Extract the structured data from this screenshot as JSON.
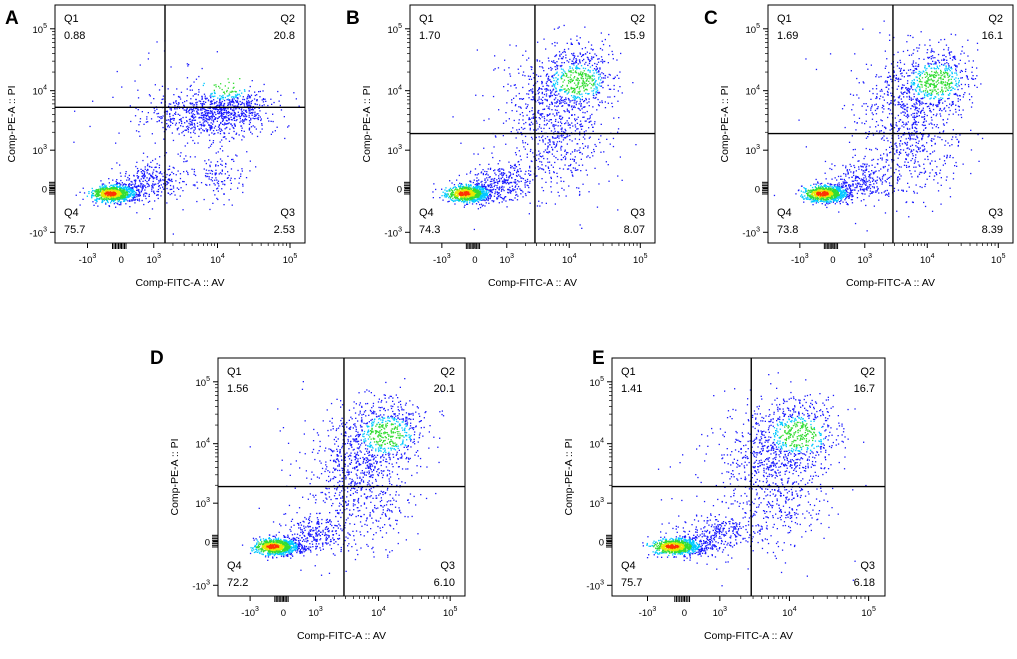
{
  "figure": {
    "axis_tick_labels": {
      "x": [
        {
          "base": "-10",
          "exp": "3"
        },
        {
          "base": "0",
          "exp": ""
        },
        {
          "base": "10",
          "exp": "3"
        },
        {
          "base": "10",
          "exp": "4"
        },
        {
          "base": "10",
          "exp": "5"
        }
      ],
      "y": [
        {
          "base": "-10",
          "exp": "3"
        },
        {
          "base": "0",
          "exp": ""
        },
        {
          "base": "10",
          "exp": "3"
        },
        {
          "base": "10",
          "exp": "4"
        },
        {
          "base": "10",
          "exp": "5"
        }
      ]
    },
    "colors": {
      "sparse": "#1a1aff",
      "medium": "#00c8ff",
      "dense": "#33dd33",
      "denser": "#e8e800",
      "densest": "#ff3300"
    }
  },
  "chart_data": [
    {
      "panel": "A",
      "type": "scatter",
      "xlabel": "Comp-FITC-A :: AV",
      "ylabel": "Comp-PE-A :: PI",
      "gate": {
        "x": 0.44,
        "y": 0.43
      },
      "quadrants": [
        {
          "label": "Q1",
          "value": "0.88"
        },
        {
          "label": "Q2",
          "value": "20.8"
        },
        {
          "label": "Q3",
          "value": "2.53"
        },
        {
          "label": "Q4",
          "value": "75.7"
        }
      ]
    },
    {
      "panel": "B",
      "type": "scatter",
      "xlabel": "Comp-FITC-A :: AV",
      "ylabel": "Comp-PE-A :: PI",
      "gate": {
        "x": 0.51,
        "y": 0.54
      },
      "quadrants": [
        {
          "label": "Q1",
          "value": "1.70"
        },
        {
          "label": "Q2",
          "value": "15.9"
        },
        {
          "label": "Q3",
          "value": "8.07"
        },
        {
          "label": "Q4",
          "value": "74.3"
        }
      ]
    },
    {
      "panel": "C",
      "type": "scatter",
      "xlabel": "Comp-FITC-A :: AV",
      "ylabel": "Comp-PE-A :: PI",
      "gate": {
        "x": 0.51,
        "y": 0.54
      },
      "quadrants": [
        {
          "label": "Q1",
          "value": "1.69"
        },
        {
          "label": "Q2",
          "value": "16.1"
        },
        {
          "label": "Q3",
          "value": "8.39"
        },
        {
          "label": "Q4",
          "value": "73.8"
        }
      ]
    },
    {
      "panel": "D",
      "type": "scatter",
      "xlabel": "Comp-FITC-A :: AV",
      "ylabel": "Comp-PE-A :: PI",
      "gate": {
        "x": 0.51,
        "y": 0.54
      },
      "quadrants": [
        {
          "label": "Q1",
          "value": "1.56"
        },
        {
          "label": "Q2",
          "value": "20.1"
        },
        {
          "label": "Q3",
          "value": "6.10"
        },
        {
          "label": "Q4",
          "value": "72.2"
        }
      ]
    },
    {
      "panel": "E",
      "type": "scatter",
      "xlabel": "Comp-FITC-A :: AV",
      "ylabel": "Comp-PE-A :: PI",
      "gate": {
        "x": 0.51,
        "y": 0.54
      },
      "quadrants": [
        {
          "label": "Q1",
          "value": "1.41"
        },
        {
          "label": "Q2",
          "value": "16.7"
        },
        {
          "label": "Q3",
          "value": "6.18"
        },
        {
          "label": "Q4",
          "value": "75.7"
        }
      ]
    }
  ]
}
